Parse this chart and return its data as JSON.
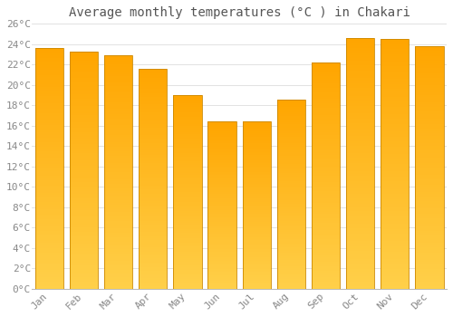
{
  "months": [
    "Jan",
    "Feb",
    "Mar",
    "Apr",
    "May",
    "Jun",
    "Jul",
    "Aug",
    "Sep",
    "Oct",
    "Nov",
    "Dec"
  ],
  "values": [
    23.6,
    23.3,
    22.9,
    21.6,
    19.0,
    16.4,
    16.4,
    18.6,
    22.2,
    24.6,
    24.5,
    23.8
  ],
  "bar_color_top": "#FFA500",
  "bar_color_bottom": "#FFD04A",
  "bar_edge_color": "#CC8800",
  "title": "Average monthly temperatures (°C ) in Chakari",
  "ylim": [
    0,
    26
  ],
  "ytick_step": 2,
  "background_color": "#FFFFFF",
  "grid_color": "#DDDDDD",
  "title_fontsize": 10,
  "tick_fontsize": 8,
  "tick_color": "#888888",
  "font_family": "monospace"
}
